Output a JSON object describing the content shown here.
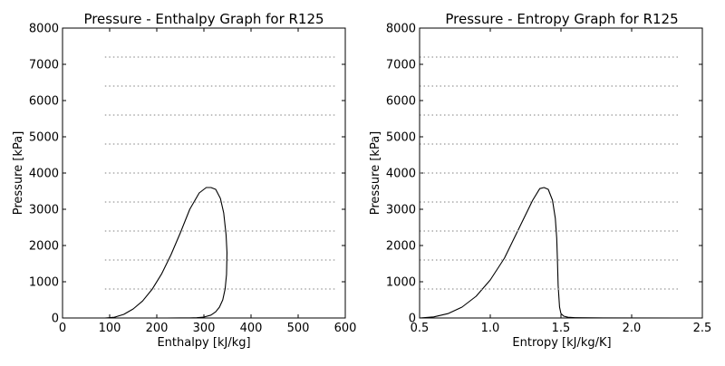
{
  "chart_data": [
    {
      "type": "line",
      "title": "Pressure - Enthalpy Graph for R125",
      "xlabel": "Enthalpy [kJ/kg]",
      "ylabel": "Pressure [kPa]",
      "xlim": [
        0,
        600
      ],
      "ylim": [
        0,
        8000
      ],
      "xticks": [
        0,
        100,
        200,
        300,
        400,
        500,
        600
      ],
      "yticks": [
        0,
        1000,
        2000,
        3000,
        4000,
        5000,
        6000,
        7000,
        8000
      ],
      "grid": false,
      "series": [
        {
          "style": "solid",
          "color": "#000000",
          "x": [
            90,
            110,
            130,
            150,
            170,
            190,
            210,
            230,
            250,
            270,
            290,
            305,
            315,
            325,
            335,
            342,
            347,
            349,
            348,
            345,
            340,
            333,
            325,
            315,
            300,
            285,
            270,
            250,
            220
          ],
          "y": [
            0,
            20,
            100,
            250,
            470,
            790,
            1210,
            1740,
            2350,
            3000,
            3450,
            3600,
            3600,
            3550,
            3300,
            2900,
            2300,
            1800,
            1200,
            800,
            500,
            300,
            170,
            80,
            25,
            8,
            3,
            1,
            0
          ]
        },
        {
          "style": "dotted",
          "color": "#aaaaaa",
          "x_range": [
            90,
            580
          ],
          "y_values": [
            800,
            1600,
            2400,
            3200,
            4000,
            4800,
            5600,
            6400,
            7200
          ]
        }
      ]
    },
    {
      "type": "line",
      "title": "Pressure - Entropy Graph for R125",
      "xlabel": "Entropy [kJ/kg/K]",
      "ylabel": "Pressure [kPa]",
      "xlim": [
        0.5,
        2.5
      ],
      "ylim": [
        0,
        8000
      ],
      "xticks": [
        0.5,
        1.0,
        1.5,
        2.0,
        2.5
      ],
      "xtick_labels": [
        "0.5",
        "1.0",
        "1.5",
        "2.0",
        "2.5"
      ],
      "yticks": [
        0,
        1000,
        2000,
        3000,
        4000,
        5000,
        6000,
        7000,
        8000
      ],
      "grid": false,
      "series": [
        {
          "style": "solid",
          "color": "#000000",
          "x": [
            0.5,
            0.6,
            0.7,
            0.8,
            0.9,
            1.0,
            1.1,
            1.2,
            1.3,
            1.35,
            1.38,
            1.41,
            1.44,
            1.46,
            1.47,
            1.475,
            1.48,
            1.49,
            1.5,
            1.52,
            1.55,
            1.6,
            1.8,
            2.33
          ],
          "y": [
            0,
            30,
            120,
            300,
            600,
            1050,
            1650,
            2450,
            3250,
            3570,
            3600,
            3550,
            3250,
            2750,
            2200,
            1600,
            900,
            300,
            120,
            50,
            20,
            8,
            2,
            0
          ]
        },
        {
          "style": "dotted",
          "color": "#aaaaaa",
          "x_range": [
            0.5,
            2.33
          ],
          "y_values": [
            800,
            1600,
            2400,
            3200,
            4000,
            4800,
            5600,
            6400,
            7200
          ]
        }
      ]
    }
  ]
}
